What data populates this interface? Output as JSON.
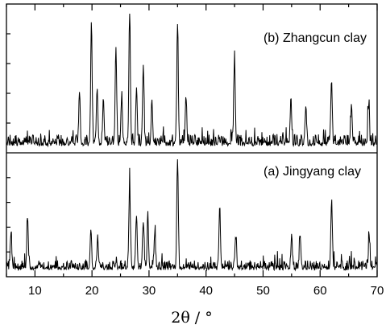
{
  "chart_data": {
    "type": "line",
    "title": "",
    "xlabel": "2θ / °",
    "ylabel": "",
    "xlim": [
      5,
      70
    ],
    "xticks": [
      10,
      20,
      30,
      40,
      50,
      60,
      70
    ],
    "grid": false,
    "legend": "none",
    "line_color": "#000000",
    "panels": [
      {
        "name": "(b) Zhangcun clay",
        "label_position": "top-right",
        "baseline": 0.18,
        "noise": 0.55,
        "peaks": [
          {
            "x": 17.8,
            "h": 0.34
          },
          {
            "x": 19.9,
            "h": 0.9
          },
          {
            "x": 20.9,
            "h": 0.42
          },
          {
            "x": 22.0,
            "h": 0.33
          },
          {
            "x": 24.2,
            "h": 0.73
          },
          {
            "x": 25.2,
            "h": 0.35
          },
          {
            "x": 26.6,
            "h": 1.0
          },
          {
            "x": 27.8,
            "h": 0.42
          },
          {
            "x": 29.0,
            "h": 0.6
          },
          {
            "x": 30.5,
            "h": 0.33
          },
          {
            "x": 35.0,
            "h": 0.9
          },
          {
            "x": 36.5,
            "h": 0.32
          },
          {
            "x": 45.0,
            "h": 0.64
          },
          {
            "x": 54.9,
            "h": 0.3
          },
          {
            "x": 57.5,
            "h": 0.27
          },
          {
            "x": 62.0,
            "h": 0.47
          },
          {
            "x": 65.5,
            "h": 0.27
          },
          {
            "x": 68.5,
            "h": 0.3
          }
        ]
      },
      {
        "name": "(a) Jingyang clay",
        "label_position": "top-right",
        "baseline": 0.2,
        "noise": 0.55,
        "peaks": [
          {
            "x": 5.8,
            "h": 0.32
          },
          {
            "x": 8.7,
            "h": 0.45
          },
          {
            "x": 19.8,
            "h": 0.33
          },
          {
            "x": 21.0,
            "h": 0.28
          },
          {
            "x": 26.6,
            "h": 0.75
          },
          {
            "x": 27.8,
            "h": 0.48
          },
          {
            "x": 29.0,
            "h": 0.42
          },
          {
            "x": 29.8,
            "h": 0.45
          },
          {
            "x": 31.0,
            "h": 0.3
          },
          {
            "x": 35.0,
            "h": 1.0
          },
          {
            "x": 42.4,
            "h": 0.55
          },
          {
            "x": 45.2,
            "h": 0.28
          },
          {
            "x": 55.0,
            "h": 0.3
          },
          {
            "x": 56.5,
            "h": 0.28
          },
          {
            "x": 62.0,
            "h": 0.58
          },
          {
            "x": 68.6,
            "h": 0.28
          }
        ]
      }
    ]
  }
}
